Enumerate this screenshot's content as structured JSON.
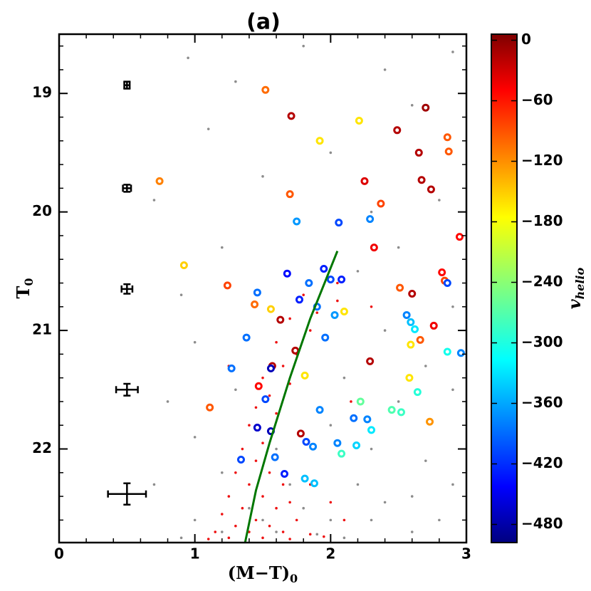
{
  "chart_data": {
    "type": "scatter",
    "title": "(a)",
    "xlabel": "(M−T)",
    "xlabel_sub": "0",
    "ylabel": "T",
    "ylabel_sub": "0",
    "xlim": [
      0,
      3
    ],
    "ylim": [
      22.79,
      18.5
    ],
    "xticks": [
      0,
      1,
      2,
      3
    ],
    "yticks": [
      19,
      20,
      21,
      22
    ],
    "xminorticks": [
      0.2,
      0.4,
      0.6,
      0.8,
      1.2,
      1.4,
      1.6,
      1.8,
      2.2,
      2.4,
      2.6,
      2.8
    ],
    "yminorticks": [
      18.6,
      18.8,
      19.2,
      19.4,
      19.6,
      19.8,
      20.2,
      20.4,
      20.6,
      20.8,
      21.2,
      21.4,
      21.6,
      21.8,
      22.2,
      22.4,
      22.6
    ],
    "colorbar_label": "v",
    "colorbar_label_sub": "helio",
    "colormap": "jet",
    "clim": [
      -498,
      6
    ],
    "cticks": [
      0,
      {
        "value": -60,
        "label": "−60"
      },
      {
        "value": -120,
        "label": "−120"
      },
      {
        "value": -180,
        "label": "−180"
      },
      {
        "value": -240,
        "label": "−240"
      },
      {
        "value": -300,
        "label": "−300"
      },
      {
        "value": -360,
        "label": "−360"
      },
      {
        "value": -420,
        "label": "−420"
      },
      {
        "value": -480,
        "label": "−480"
      }
    ],
    "series": [
      {
        "marker": "dot",
        "color": "#8c8c8c",
        "x": [
          0.95,
          1.3,
          1.8,
          2.4,
          2.9,
          1.1,
          2.0,
          2.6,
          0.7,
          1.5,
          2.3,
          2.8,
          1.2,
          2.5,
          0.9,
          2.2,
          2.9,
          1.0,
          2.4,
          2.7,
          0.8,
          1.3,
          2.1,
          2.5,
          2.9,
          1.0,
          1.6,
          2.0,
          2.3,
          2.7,
          0.7,
          1.2,
          1.7,
          2.2,
          2.6,
          2.9,
          1.0,
          1.4,
          1.8,
          2.0,
          2.3,
          2.6,
          1.2,
          1.6,
          1.9,
          2.1,
          0.9,
          2.8,
          1.5,
          2.4
        ],
        "values": [
          18.7,
          18.9,
          18.6,
          18.8,
          18.65,
          19.3,
          19.5,
          19.1,
          19.9,
          19.7,
          20.0,
          19.9,
          20.3,
          20.3,
          20.7,
          20.5,
          20.8,
          21.1,
          21.0,
          21.3,
          21.6,
          21.5,
          21.4,
          21.6,
          21.5,
          21.9,
          22.0,
          21.8,
          22.0,
          22.1,
          22.3,
          22.2,
          22.3,
          22.3,
          22.4,
          22.3,
          22.6,
          22.5,
          22.5,
          22.6,
          22.6,
          22.7,
          22.7,
          22.7,
          22.72,
          22.75,
          22.75,
          22.6,
          22.6,
          22.45
        ]
      },
      {
        "marker": "dot",
        "color": "#ee1111",
        "x": [
          1.95,
          2.05,
          1.8,
          1.9,
          1.7,
          1.85,
          1.6,
          1.75,
          1.65,
          1.5,
          1.7,
          1.55,
          1.45,
          1.6,
          1.4,
          1.55,
          1.5,
          1.35,
          1.6,
          1.45,
          1.3,
          1.55,
          1.4,
          1.65,
          1.25,
          1.5,
          1.7,
          1.35,
          1.6,
          1.2,
          1.45,
          1.75,
          1.3,
          1.55,
          1.15,
          1.4,
          1.65,
          1.85,
          1.25,
          1.5,
          1.7,
          1.95,
          1.1,
          2.1,
          2.0,
          1.85,
          2.15,
          2.3,
          2.05,
          1.25
        ],
        "values": [
          20.5,
          20.6,
          20.7,
          20.85,
          20.9,
          21.0,
          21.1,
          21.2,
          21.3,
          21.4,
          21.45,
          21.55,
          21.65,
          21.7,
          21.8,
          21.85,
          21.95,
          22.0,
          22.05,
          22.1,
          22.2,
          22.2,
          22.3,
          22.3,
          22.4,
          22.4,
          22.45,
          22.5,
          22.5,
          22.55,
          22.6,
          22.6,
          22.65,
          22.65,
          22.7,
          22.7,
          22.7,
          22.72,
          22.75,
          22.75,
          22.76,
          22.74,
          22.76,
          22.6,
          22.45,
          22.3,
          21.6,
          20.8,
          20.75,
          21.3
        ]
      },
      {
        "marker": "ring",
        "x": [
          1.52,
          1.71,
          2.21,
          1.92,
          2.49,
          2.7,
          2.86,
          2.87,
          2.65,
          0.74,
          2.25,
          2.67,
          2.74,
          1.7,
          2.37,
          1.75,
          2.06,
          2.29,
          2.95,
          2.32,
          0.92,
          1.68,
          1.24,
          2.51,
          1.46,
          1.44,
          2.6,
          2.82,
          2.84,
          2.86,
          2.1,
          1.9,
          1.56,
          1.63,
          1.38,
          2.03,
          2.56,
          2.59,
          2.62,
          2.76,
          2.66,
          2.59,
          2.86,
          2.96,
          1.74,
          1.57,
          2.29,
          1.27,
          1.81,
          2.58,
          1.52,
          1.47,
          2.22,
          2.64,
          1.11,
          1.92,
          2.17,
          2.27,
          2.45,
          2.52,
          2.73,
          2.3,
          1.46,
          1.78,
          1.82,
          1.87,
          2.05,
          2.19,
          2.08,
          1.34,
          1.59,
          1.66,
          1.81,
          1.88,
          1.77,
          1.84,
          1.95,
          2.0,
          2.08,
          1.96,
          1.56,
          1.56
        ],
        "values": [
          18.97,
          19.19,
          19.23,
          19.4,
          19.31,
          19.12,
          19.37,
          19.49,
          19.5,
          19.74,
          19.74,
          19.73,
          19.81,
          19.85,
          19.93,
          20.08,
          20.09,
          20.06,
          20.21,
          20.3,
          20.45,
          20.52,
          20.62,
          20.64,
          20.68,
          20.78,
          20.69,
          20.51,
          20.58,
          20.6,
          20.84,
          20.8,
          20.82,
          20.91,
          21.06,
          20.87,
          20.87,
          20.93,
          20.99,
          20.96,
          21.08,
          21.12,
          21.18,
          21.19,
          21.17,
          21.3,
          21.26,
          21.32,
          21.38,
          21.4,
          21.58,
          21.47,
          21.6,
          21.52,
          21.65,
          21.67,
          21.74,
          21.75,
          21.67,
          21.69,
          21.77,
          21.84,
          21.82,
          21.87,
          21.94,
          21.98,
          21.95,
          21.97,
          22.04,
          22.09,
          22.07,
          22.21,
          22.25,
          22.29,
          20.74,
          20.6,
          20.48,
          20.57,
          20.57,
          21.06,
          21.32,
          21.85
        ],
        "color_values": [
          -110,
          -20,
          -170,
          -170,
          -20,
          -10,
          -100,
          -100,
          -20,
          -120,
          -40,
          -20,
          -20,
          -100,
          -90,
          -360,
          -400,
          -370,
          -60,
          -50,
          -160,
          -430,
          -90,
          -100,
          -380,
          -110,
          -20,
          -60,
          -90,
          -400,
          -170,
          -380,
          -160,
          -20,
          -380,
          -360,
          -370,
          -340,
          -320,
          -50,
          -100,
          -170,
          -300,
          -370,
          -20,
          -20,
          -20,
          -380,
          -170,
          -170,
          -400,
          -60,
          -260,
          -290,
          -100,
          -370,
          -380,
          -370,
          -270,
          -280,
          -130,
          -320,
          -460,
          -20,
          -400,
          -370,
          -370,
          -330,
          -280,
          -400,
          -380,
          -420,
          -340,
          -340,
          -420,
          -380,
          -420,
          -400,
          -420,
          -380,
          -470,
          -470
        ]
      },
      {
        "marker": "line",
        "color": "#007700",
        "x": [
          2.05,
          1.85,
          1.7,
          1.55,
          1.45,
          1.37
        ],
        "values": [
          20.33,
          20.9,
          21.4,
          21.95,
          22.35,
          22.79
        ]
      },
      {
        "marker": "errorbar",
        "color": "#000000",
        "x": [
          0.5,
          0.5,
          0.5,
          0.5,
          0.5
        ],
        "values": [
          18.93,
          19.8,
          20.65,
          21.5,
          22.38
        ],
        "xerr": [
          0.02,
          0.03,
          0.04,
          0.08,
          0.14
        ],
        "yerr": [
          0.03,
          0.03,
          0.04,
          0.05,
          0.09
        ]
      }
    ]
  }
}
